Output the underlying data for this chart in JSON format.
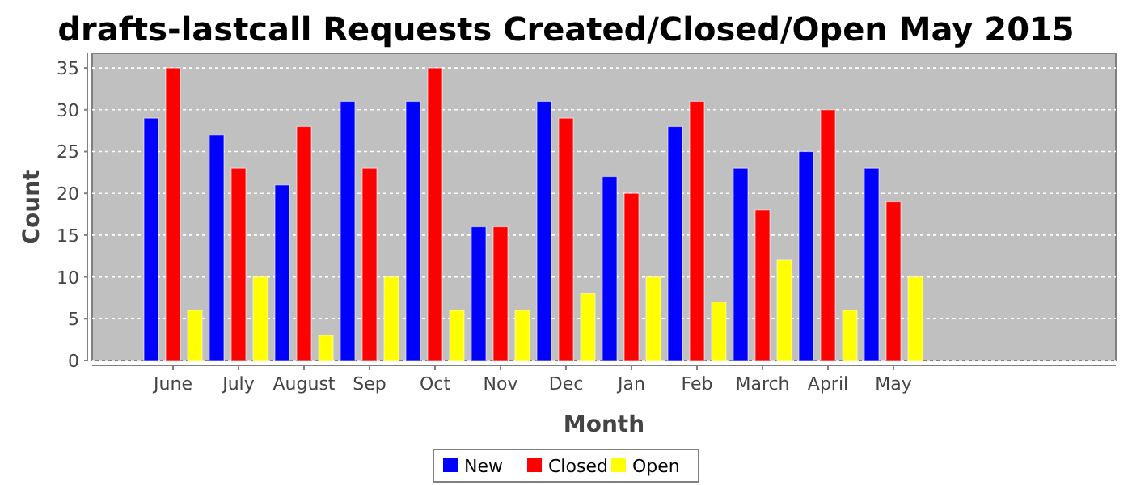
{
  "chart_data": {
    "type": "bar",
    "title": "drafts-lastcall Requests Created/Closed/Open May 2015",
    "xlabel": "Month",
    "ylabel": "Count",
    "categories": [
      "June",
      "July",
      "August",
      "Sep",
      "Oct",
      "Nov",
      "Dec",
      "Jan",
      "Feb",
      "March",
      "April",
      "May"
    ],
    "series": [
      {
        "name": "New",
        "color": "#0000ff",
        "values": [
          29,
          27,
          21,
          31,
          31,
          16,
          31,
          22,
          28,
          23,
          25,
          23
        ]
      },
      {
        "name": "Closed",
        "color": "#ff0000",
        "values": [
          35,
          23,
          28,
          23,
          35,
          16,
          29,
          20,
          31,
          18,
          30,
          19
        ]
      },
      {
        "name": "Open",
        "color": "#ffff00",
        "values": [
          6,
          10,
          3,
          10,
          6,
          6,
          8,
          10,
          7,
          12,
          6,
          10
        ]
      }
    ],
    "ylim": [
      0,
      36.75
    ],
    "yticks": [
      0,
      5,
      10,
      15,
      20,
      25,
      30,
      35
    ],
    "grid": "y",
    "legend": "bottom"
  }
}
